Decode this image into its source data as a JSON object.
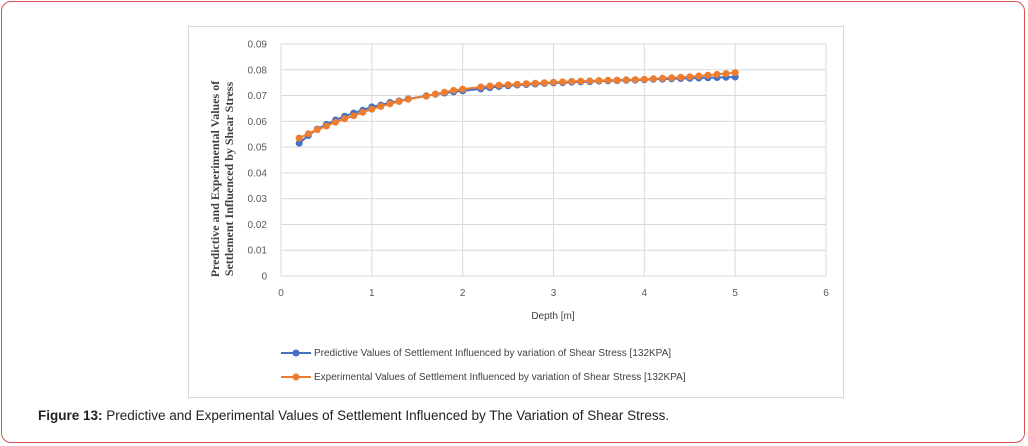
{
  "caption": {
    "label": "Figure 13:",
    "text": " Predictive and Experimental Values of Settlement Influenced by The Variation of Shear Stress."
  },
  "chart_data": {
    "type": "line",
    "xlabel": "Depth [m]",
    "ylabel_line1": "Predictive  and  Experimental  Values  of",
    "ylabel_line2": "Settlement  Influenced  by Shear Stress",
    "xlim": [
      0,
      6
    ],
    "ylim": [
      0,
      0.09
    ],
    "xticks": [
      "0",
      "1",
      "2",
      "3",
      "4",
      "5",
      "6"
    ],
    "yticks": [
      "0",
      "0.01",
      "0.02",
      "0.03",
      "0.04",
      "0.05",
      "0.06",
      "0.07",
      "0.08",
      "0.09"
    ],
    "grid": true,
    "legend_position": "bottom",
    "series": [
      {
        "name": "Predictive Values of Settlement Influenced by variation of Shear Stress [132KPA]",
        "color": "#4472c4",
        "x": [
          0.2,
          0.3,
          0.4,
          0.5,
          0.6,
          0.7,
          0.8,
          0.9,
          1.0,
          1.1,
          1.2,
          1.3,
          1.4,
          1.6,
          1.7,
          1.8,
          1.9,
          2.0,
          2.2,
          2.3,
          2.4,
          2.5,
          2.6,
          2.7,
          2.8,
          2.9,
          3.0,
          3.1,
          3.2,
          3.3,
          3.4,
          3.5,
          3.6,
          3.7,
          3.8,
          3.9,
          4.0,
          4.1,
          4.2,
          4.3,
          4.4,
          4.5,
          4.6,
          4.7,
          4.8,
          4.9,
          5.0
        ],
        "y": [
          0.0515,
          0.0545,
          0.057,
          0.0588,
          0.0605,
          0.062,
          0.0632,
          0.0643,
          0.0656,
          0.0663,
          0.0673,
          0.0679,
          0.0687,
          0.0699,
          0.0705,
          0.071,
          0.0714,
          0.0718,
          0.0726,
          0.0731,
          0.0735,
          0.0738,
          0.0741,
          0.0743,
          0.0745,
          0.0747,
          0.0749,
          0.075,
          0.0752,
          0.0753,
          0.0754,
          0.0756,
          0.0757,
          0.0758,
          0.0759,
          0.076,
          0.0761,
          0.0763,
          0.0764,
          0.0765,
          0.0766,
          0.0767,
          0.0768,
          0.0769,
          0.077,
          0.0771,
          0.0772
        ]
      },
      {
        "name": "Experimental  Values of Settlement Influenced by variation of Shear Stress [132KPA]",
        "color": "#ed7d31",
        "x": [
          0.2,
          0.3,
          0.4,
          0.5,
          0.6,
          0.7,
          0.8,
          0.9,
          1.0,
          1.1,
          1.2,
          1.3,
          1.4,
          1.6,
          1.7,
          1.8,
          1.9,
          2.0,
          2.2,
          2.3,
          2.4,
          2.5,
          2.6,
          2.7,
          2.8,
          2.9,
          3.0,
          3.1,
          3.2,
          3.3,
          3.4,
          3.5,
          3.6,
          3.7,
          3.8,
          3.9,
          4.0,
          4.1,
          4.2,
          4.3,
          4.4,
          4.5,
          4.6,
          4.7,
          4.8,
          4.9,
          5.0
        ],
        "y": [
          0.0535,
          0.0552,
          0.0568,
          0.0582,
          0.0597,
          0.061,
          0.0622,
          0.0635,
          0.0647,
          0.0658,
          0.0668,
          0.0677,
          0.0686,
          0.0698,
          0.0706,
          0.0713,
          0.072,
          0.0725,
          0.0733,
          0.0737,
          0.074,
          0.0742,
          0.0744,
          0.0746,
          0.0748,
          0.075,
          0.0752,
          0.0753,
          0.0755,
          0.0756,
          0.0757,
          0.0758,
          0.0759,
          0.076,
          0.0761,
          0.0762,
          0.0763,
          0.0765,
          0.0767,
          0.0769,
          0.0771,
          0.0773,
          0.0776,
          0.0779,
          0.0782,
          0.0785,
          0.0789
        ]
      }
    ]
  }
}
